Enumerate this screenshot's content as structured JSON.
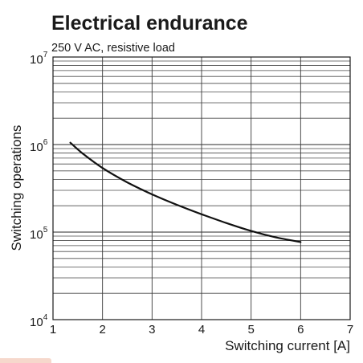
{
  "chart_data": {
    "type": "line",
    "title": "Electrical endurance",
    "subtitle": "250 V AC, resistive load",
    "xlabel": "Switching current [A]",
    "ylabel": "Switching operations",
    "x_scale": "linear",
    "y_scale": "log",
    "xlim": [
      1,
      7
    ],
    "ylim": [
      10000,
      10000000
    ],
    "x_ticks": [
      "1",
      "2",
      "3",
      "4",
      "5",
      "6",
      "7"
    ],
    "y_ticks": [
      {
        "base": "10",
        "exp": "4"
      },
      {
        "base": "10",
        "exp": "5"
      },
      {
        "base": "10",
        "exp": "6"
      },
      {
        "base": "10",
        "exp": "7"
      }
    ],
    "grid": true,
    "series": [
      {
        "color": "#111111",
        "x": [
          1.35,
          1.6,
          2.0,
          2.5,
          3.0,
          3.5,
          4.0,
          4.5,
          5.0,
          5.5,
          6.0
        ],
        "y": [
          1050000,
          790000,
          540000,
          370000,
          270000,
          205000,
          160000,
          127000,
          103000,
          87000,
          77000
        ]
      }
    ]
  },
  "colors": {
    "line": "#111111",
    "grid": "#3a3a3a",
    "footer_tag": "#f6d8cc"
  }
}
